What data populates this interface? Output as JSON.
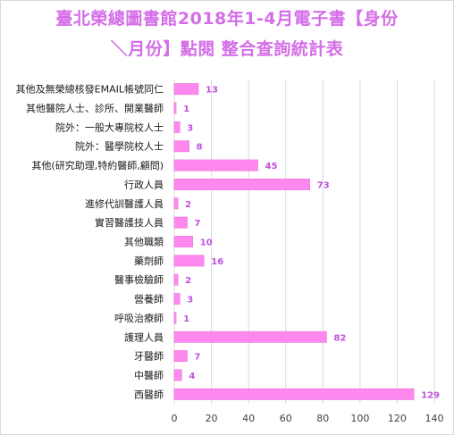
{
  "chart_data": {
    "type": "bar",
    "orientation": "horizontal",
    "title_line1": "臺北榮總圖書館2018年1-4月電子書【身份",
    "title_line2": "＼月份】點閱 整合查詢統計表",
    "categories": [
      "其他及無榮總核發EMAIL帳號同仁",
      "其他醫院人士、診所、開業醫師",
      "院外：一般大專院校人士",
      "院外：醫學院校人士",
      "其他(研究助理,特約醫師,顧問)",
      "行政人員",
      "進修代訓醫護人員",
      "實習醫護技人員",
      "其他職類",
      "藥劑師",
      "醫事檢驗師",
      "營養師",
      "呼吸治療師",
      "護理人員",
      "牙醫師",
      "中醫師",
      "西醫師"
    ],
    "values": [
      13,
      1,
      3,
      8,
      45,
      73,
      2,
      7,
      10,
      16,
      2,
      3,
      1,
      82,
      7,
      4,
      129
    ],
    "xlim": [
      0,
      140
    ],
    "xticks": [
      0,
      20,
      40,
      60,
      80,
      100,
      120,
      140
    ],
    "grid": true,
    "legend": "none",
    "bar_color": "#ff88ee",
    "bar_edge_color": "#e070d8",
    "label_color": "#c050e0",
    "title_color": "#d46ee8"
  }
}
